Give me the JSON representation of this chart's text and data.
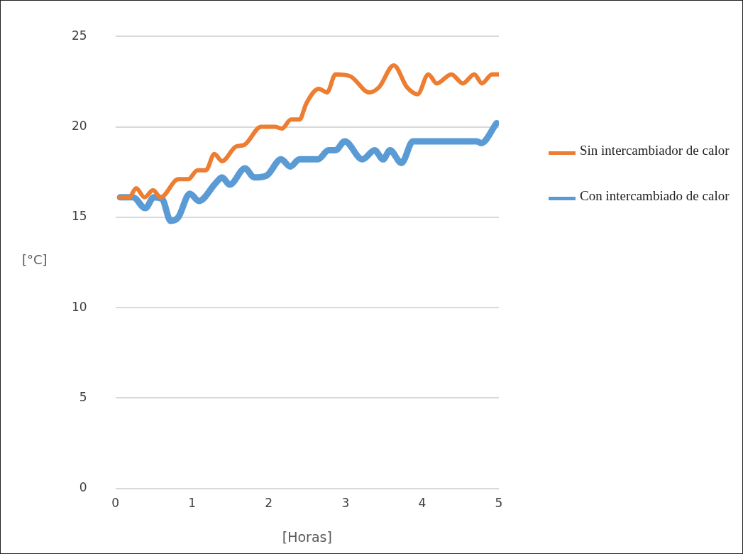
{
  "chart_data": {
    "type": "line",
    "xlabel": "[Horas]",
    "ylabel": "[°C]",
    "xlim": [
      0,
      5
    ],
    "xticks": [
      0,
      1,
      2,
      3,
      4,
      5
    ],
    "ylim": [
      0,
      25
    ],
    "yticks": [
      0,
      5,
      10,
      15,
      20,
      25
    ],
    "grid": "y",
    "legend": "right",
    "marker": "none",
    "line_style": "solid",
    "series": [
      {
        "name": "Sin intercambiador de calor",
        "color": "#ed7d31",
        "x": [
          0.06,
          0.18,
          0.27,
          0.38,
          0.49,
          0.59,
          0.82,
          0.95,
          1.07,
          1.18,
          1.29,
          1.39,
          1.57,
          1.68,
          1.9,
          2.08,
          2.17,
          2.29,
          2.4,
          2.49,
          2.65,
          2.76,
          2.87,
          3.06,
          3.31,
          3.44,
          3.63,
          3.8,
          3.94,
          4.08,
          4.19,
          4.38,
          4.53,
          4.68,
          4.78,
          4.91,
          5.0
        ],
        "values": [
          16.1,
          16.1,
          16.6,
          16.1,
          16.5,
          16.1,
          17.1,
          17.1,
          17.6,
          17.6,
          18.5,
          18.1,
          18.9,
          19.0,
          20.0,
          20.0,
          19.9,
          20.4,
          20.4,
          21.3,
          22.1,
          21.9,
          22.9,
          22.8,
          21.9,
          22.2,
          23.4,
          22.2,
          21.8,
          22.9,
          22.4,
          22.9,
          22.4,
          22.9,
          22.4,
          22.9,
          22.9
        ]
      },
      {
        "name": "Con intercambiado de calor",
        "color": "#5b9bd5",
        "x": [
          0.06,
          0.23,
          0.39,
          0.5,
          0.61,
          0.72,
          0.82,
          0.97,
          1.09,
          1.31,
          1.39,
          1.49,
          1.69,
          1.81,
          1.97,
          2.16,
          2.28,
          2.4,
          2.64,
          2.78,
          2.87,
          2.99,
          3.22,
          3.38,
          3.49,
          3.58,
          3.73,
          3.88,
          4.17,
          4.71,
          4.77,
          4.97
        ],
        "values": [
          16.1,
          16.1,
          15.5,
          16.1,
          16.0,
          14.8,
          15.0,
          16.3,
          15.9,
          16.9,
          17.2,
          16.8,
          17.7,
          17.2,
          17.3,
          18.2,
          17.8,
          18.2,
          18.2,
          18.7,
          18.7,
          19.2,
          18.2,
          18.7,
          18.2,
          18.7,
          18.0,
          19.2,
          19.2,
          19.2,
          19.1,
          20.2
        ]
      }
    ]
  }
}
